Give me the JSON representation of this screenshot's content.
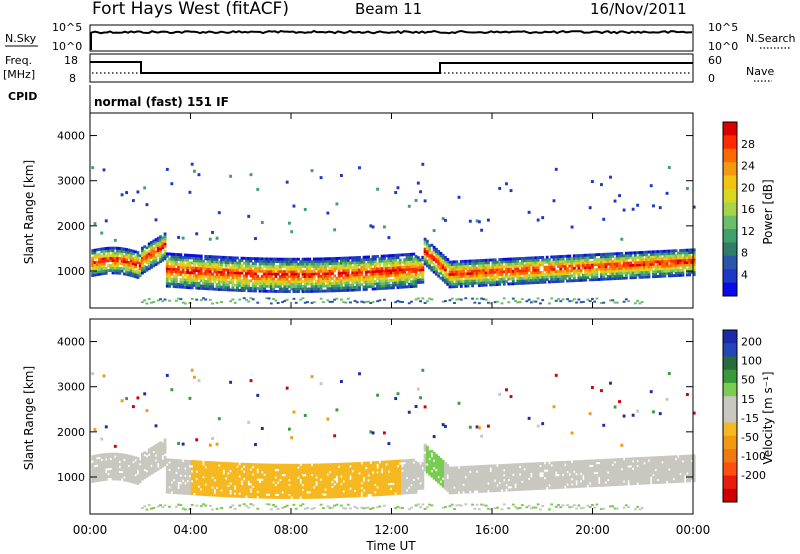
{
  "header": {
    "station": "Fort Hays West (fitACF)",
    "beam": "Beam 11",
    "date": "16/Nov/2011"
  },
  "top_panels": {
    "nsky_label": "N.Sky",
    "nsky_ticks": [
      "10^5",
      "10^0"
    ],
    "nsearch_label": "N.Search",
    "nsearch_ticks": [
      "10^5",
      "10^0"
    ],
    "freq_label": "Freq.",
    "freq_unit": "[MHz]",
    "freq_ticks": [
      "18",
      "8"
    ],
    "nave_label": "Nave",
    "nave_ticks": [
      "60",
      "0"
    ],
    "cpid_label": "CPID",
    "cpid_text": "normal (fast) 151 IF"
  },
  "chart_data": [
    {
      "type": "heatmap",
      "name": "power",
      "ylabel": "Slant Range [km]",
      "yticks": [
        "4000",
        "3000",
        "2000",
        "1000"
      ],
      "ytick_values": [
        4000,
        3000,
        2000,
        1000
      ],
      "ylim": [
        180,
        4500
      ],
      "xlim": [
        0,
        24
      ],
      "colorbar": {
        "label": "Power [dB]",
        "ticks": [
          "28",
          "24",
          "20",
          "16",
          "12",
          "8",
          "4"
        ],
        "colors": [
          "#d90000",
          "#ff2a00",
          "#ff6a00",
          "#f39a10",
          "#f2c310",
          "#d8d820",
          "#a8d34a",
          "#6cbf6a",
          "#3f9f6f",
          "#2e7d68",
          "#2856a8",
          "#1d38c8",
          "#0a0ae8"
        ]
      }
    },
    {
      "type": "heatmap",
      "name": "velocity",
      "ylabel": "Slant Range [km]",
      "yticks": [
        "4000",
        "3000",
        "2000",
        "1000"
      ],
      "ytick_values": [
        4000,
        3000,
        2000,
        1000
      ],
      "ylim": [
        180,
        4500
      ],
      "xlim": [
        0,
        24
      ],
      "xlabel": "Time UT",
      "xticks": [
        "00:00",
        "04:00",
        "08:00",
        "12:00",
        "16:00",
        "20:00",
        "00:00"
      ],
      "xtick_values": [
        0,
        4,
        8,
        12,
        16,
        20,
        24
      ],
      "colorbar": {
        "label": "Velocity [m s⁻¹]",
        "ticks": [
          "200",
          "100",
          "50",
          "15",
          "-15",
          "-50",
          "-100",
          "-200"
        ],
        "colors": [
          "#1a2aa8",
          "#2446b8",
          "#2a6b3a",
          "#3a9a3a",
          "#7acc50",
          "#c8c8c0",
          "#c8c8c0",
          "#f5b820",
          "#f09a10",
          "#ee7a10",
          "#ff5010",
          "#e81c0c",
          "#d00000"
        ]
      }
    }
  ]
}
